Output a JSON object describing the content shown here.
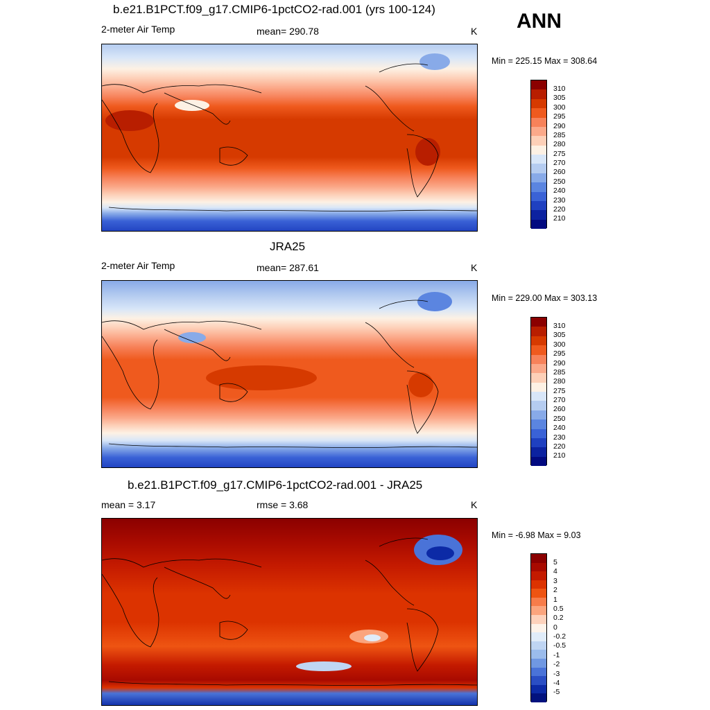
{
  "annual_label": "ANN",
  "unit": "K",
  "panels": [
    {
      "title": "b.e21.B1PCT.f09_g17.CMIP6-1pctCO2-rad.001 (yrs 100-124)",
      "variable": "2-meter Air Temp",
      "stat": "mean= 290.78",
      "minmax": "Min = 225.15 Max = 308.64",
      "colorbar": [
        "310",
        "305",
        "300",
        "295",
        "290",
        "285",
        "280",
        "275",
        "270",
        "260",
        "250",
        "240",
        "230",
        "220",
        "210"
      ]
    },
    {
      "title": "JRA25",
      "variable": "2-meter Air Temp",
      "stat": "mean= 287.61",
      "minmax": "Min = 229.00 Max = 303.13",
      "colorbar": [
        "310",
        "305",
        "300",
        "295",
        "290",
        "285",
        "280",
        "275",
        "270",
        "260",
        "250",
        "240",
        "230",
        "220",
        "210"
      ]
    },
    {
      "title": "b.e21.B1PCT.f09_g17.CMIP6-1pctCO2-rad.001 - JRA25",
      "mean_stat": "mean =   3.17",
      "rmse_stat": "rmse =   3.68",
      "minmax": "Min =  -6.98 Max =   9.03",
      "colorbar": [
        "5",
        "4",
        "3",
        "2",
        "1",
        "0.5",
        "0.2",
        "0",
        "-0.2",
        "-0.5",
        "-1",
        "-2",
        "-3",
        "-4",
        "-5"
      ]
    }
  ],
  "colors": {
    "temp_scale": [
      "#8b0000",
      "#b81e00",
      "#d63a00",
      "#ef5a1e",
      "#f7825a",
      "#fba98a",
      "#fdd0b8",
      "#fdf1e4",
      "#d8e6f8",
      "#b5ccf0",
      "#88aae8",
      "#5b85e0",
      "#3a62d6",
      "#1f40c0",
      "#0c22a0",
      "#020a80"
    ],
    "diff_scale": [
      "#8b0000",
      "#a80a00",
      "#c41a00",
      "#dc3300",
      "#ee5412",
      "#f77c4a",
      "#fba57e",
      "#fdd2bc",
      "#fdf3ea",
      "#e0ecf9",
      "#bfd5f3",
      "#9bbcec",
      "#7098e2",
      "#4a73d8",
      "#2a4ec4",
      "#0c2aa6",
      "#02127e"
    ]
  }
}
